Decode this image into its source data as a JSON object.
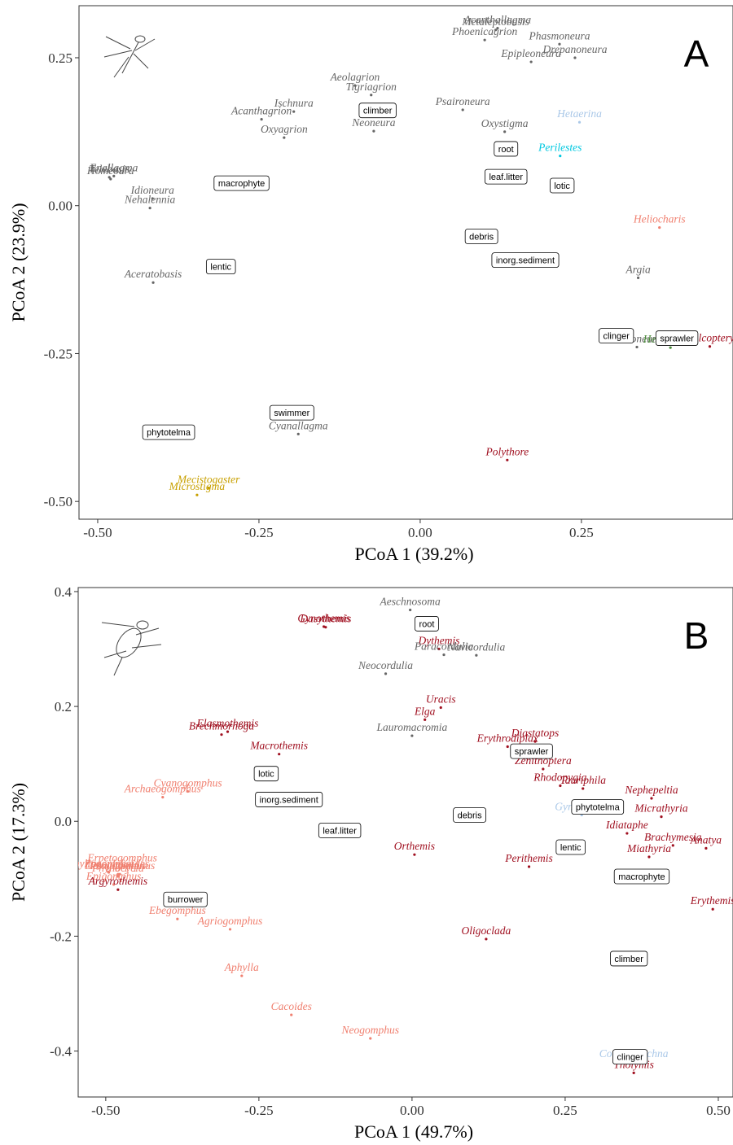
{
  "chart_data": [
    {
      "type": "scatter",
      "panel_label": "A",
      "x_label": "PCoA 1 (39.2%)",
      "y_label": "PCoA 2 (23.9%)",
      "xlim": [
        -0.529,
        0.485
      ],
      "ylim": [
        -0.53,
        0.338
      ],
      "xticks": [
        {
          "value": -0.5,
          "label": "-0.50"
        },
        -0.25,
        {
          "value": 0,
          "label": "0.00"
        },
        0.25
      ],
      "yticks": [
        {
          "value": -0.5,
          "label": "-0.50"
        },
        -0.25,
        {
          "value": 0,
          "label": "0.00"
        },
        0.25
      ],
      "labels": [
        "Metaleptobasis",
        "Acanthallagma",
        "Phoenicagrion",
        "Phasmoneura",
        "Drepanoneura",
        "Epipleoneura",
        "Aeolagrion",
        "Tigriagrion",
        "Neoneura",
        "Ischnura",
        "Acanthagrion",
        "Oxyagrion",
        "Psaironeura",
        "Oxystigma",
        "Hetaerina",
        "Perilestes",
        "Telebasis",
        "Enallagma",
        "Homeoura",
        "Idioneura",
        "Nehalennia",
        "Aceratobasis",
        "Heliocharis",
        "Argia",
        "Protoneura",
        "Heteragrion",
        "Chalcopteryx",
        "Cyanallagma",
        "Polythore",
        "Mecistogaster",
        "Microstigma"
      ],
      "x": [
        0.117,
        0.12,
        0.1,
        0.216,
        0.24,
        0.172,
        -0.101,
        -0.076,
        -0.072,
        -0.196,
        -0.246,
        -0.211,
        0.066,
        0.131,
        0.247,
        0.217,
        -0.482,
        -0.475,
        -0.48,
        -0.415,
        -0.419,
        -0.414,
        0.371,
        0.338,
        0.336,
        0.388,
        0.449,
        -0.189,
        0.135,
        -0.328,
        -0.346
      ],
      "y": [
        0.297,
        0.3,
        0.28,
        0.273,
        0.25,
        0.243,
        0.203,
        0.187,
        0.126,
        0.159,
        0.146,
        0.115,
        0.162,
        0.125,
        0.141,
        0.084,
        0.048,
        0.05,
        0.045,
        0.012,
        -0.004,
        -0.13,
        -0.037,
        -0.122,
        -0.239,
        -0.24,
        -0.238,
        -0.386,
        -0.43,
        -0.477,
        -0.489
      ],
      "colors": [
        "#666666",
        "#666666",
        "#666666",
        "#666666",
        "#666666",
        "#666666",
        "#666666",
        "#666666",
        "#666666",
        "#666666",
        "#666666",
        "#666666",
        "#666666",
        "#666666",
        "#aac8e8",
        "#00c8e0",
        "#666666",
        "#666666",
        "#666666",
        "#666666",
        "#666666",
        "#666666",
        "#f08070",
        "#666666",
        "#666666",
        "#4a8c3a",
        "#a01020",
        "#666666",
        "#a01020",
        "#c8a000",
        "#c8a000"
      ],
      "traits": {
        "labels": [
          "climber",
          "root",
          "leaf.litter",
          "lotic",
          "macrophyte",
          "debris",
          "inorg.sediment",
          "lentic",
          "clinger",
          "sprawler",
          "swimmer",
          "phytotelma"
        ],
        "x": [
          -0.066,
          0.133,
          0.133,
          0.22,
          -0.277,
          0.095,
          0.163,
          -0.309,
          0.304,
          0.398,
          -0.199,
          -0.39
        ],
        "y": [
          0.161,
          0.096,
          0.049,
          0.034,
          0.038,
          -0.052,
          -0.092,
          -0.103,
          -0.22,
          -0.224,
          -0.35,
          -0.383
        ]
      }
    },
    {
      "type": "scatter",
      "panel_label": "B",
      "x_label": "PCoA 1 (49.7%)",
      "y_label": "PCoA 2 (17.3%)",
      "xlim": [
        -0.545,
        0.524
      ],
      "ylim": [
        -0.48,
        0.407
      ],
      "xticks": [
        {
          "value": -0.5,
          "label": "-0.50"
        },
        -0.25,
        {
          "value": 0,
          "label": "0.00"
        },
        0.25,
        {
          "value": 0.5,
          "label": "0.50"
        }
      ],
      "yticks": [
        -0.4,
        -0.2,
        {
          "value": 0,
          "label": "0.0"
        },
        0.2,
        0.4
      ],
      "labels": [
        "Gynothemis",
        "Dasythemis",
        "Aeschnosoma",
        "Dythemis",
        "Navicordulia",
        "Paracordulia",
        "Neocordulia",
        "Uracis",
        "Elga",
        "Lauromacromia",
        "Elasmothemis",
        "Brechmorhoga",
        "Macrothemis",
        "Erythrodiplax",
        "Diastatops",
        "Zenithoptera",
        "Rhodopygia",
        "Tauriphila",
        "Nephepeltia",
        "Micrathyria",
        "Brachymesia",
        "Anatya",
        "Miathyria",
        "Idiataphe",
        "Erythemis",
        "Gynacantha",
        "Orthemis",
        "Perithemis",
        "Oligoclada",
        "Tholymis",
        "Coryphaeschna",
        "Cyanogomphus",
        "Archaeogomphus",
        "Phyllogomphoides",
        "Erpetogomphus",
        "Desmogomphus",
        "Zonophora",
        "Progomphus",
        "Epigomphus",
        "Phyllocycla",
        "Argyrothemis",
        "Ebegomphus",
        "Agriogomphus",
        "Aphylla",
        "Cacoides",
        "Neogomphus"
      ],
      "x": [
        -0.144,
        -0.141,
        -0.003,
        0.044,
        0.105,
        0.052,
        -0.043,
        0.047,
        0.021,
        0.0,
        -0.301,
        -0.311,
        -0.217,
        0.156,
        0.201,
        0.214,
        0.242,
        0.279,
        0.391,
        0.407,
        0.426,
        0.48,
        0.387,
        0.351,
        0.491,
        0.277,
        0.004,
        0.191,
        0.121,
        0.362,
        0.362,
        -0.366,
        -0.407,
        -0.496,
        -0.473,
        -0.477,
        -0.495,
        -0.48,
        -0.487,
        -0.48,
        -0.48,
        -0.383,
        -0.297,
        -0.278,
        -0.197,
        -0.068
      ],
      "y": [
        0.339,
        0.338,
        0.368,
        0.3,
        0.289,
        0.29,
        0.257,
        0.198,
        0.177,
        0.149,
        0.156,
        0.151,
        0.117,
        0.13,
        0.139,
        0.091,
        0.062,
        0.057,
        0.04,
        0.008,
        -0.042,
        -0.047,
        -0.062,
        -0.021,
        -0.153,
        0.011,
        -0.058,
        -0.079,
        -0.205,
        -0.438,
        -0.419,
        0.052,
        0.042,
        -0.088,
        -0.078,
        -0.092,
        -0.089,
        -0.092,
        -0.11,
        -0.096,
        -0.119,
        -0.17,
        -0.188,
        -0.269,
        -0.337,
        -0.378
      ],
      "colors": [
        "#a01020",
        "#a01020",
        "#666666",
        "#a01020",
        "#666666",
        "#666666",
        "#666666",
        "#a01020",
        "#a01020",
        "#666666",
        "#a01020",
        "#a01020",
        "#a01020",
        "#a01020",
        "#a01020",
        "#a01020",
        "#a01020",
        "#a01020",
        "#a01020",
        "#a01020",
        "#a01020",
        "#a01020",
        "#a01020",
        "#a01020",
        "#a01020",
        "#aac8e8",
        "#a01020",
        "#a01020",
        "#a01020",
        "#a01020",
        "#aac8e8",
        "#f08070",
        "#f08070",
        "#f08070",
        "#f08070",
        "#f08070",
        "#f08070",
        "#f08070",
        "#f08070",
        "#f08070",
        "#a01020",
        "#f08070",
        "#f08070",
        "#f08070",
        "#f08070",
        "#f08070"
      ],
      "traits": {
        "labels": [
          "root",
          "sprawler",
          "lotic",
          "inorg.sediment",
          "leaf.litter",
          "debris",
          "phytotelma",
          "lentic",
          "macrophyte",
          "burrower",
          "climber",
          "clinger"
        ],
        "x": [
          0.024,
          0.195,
          -0.238,
          -0.201,
          -0.118,
          0.094,
          0.303,
          0.259,
          0.375,
          -0.37,
          0.354,
          0.356
        ],
        "y": [
          0.344,
          0.122,
          0.083,
          0.038,
          -0.016,
          0.011,
          0.025,
          -0.045,
          -0.096,
          -0.136,
          -0.239,
          -0.41
        ]
      }
    }
  ]
}
